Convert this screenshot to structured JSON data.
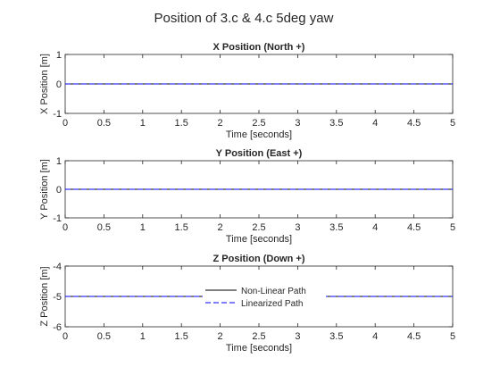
{
  "figure": {
    "title": "Position of 3.c & 4.c 5deg yaw"
  },
  "colors": {
    "nonlinear": "#000000",
    "linearized": "#0000ff",
    "axes": "#262626"
  },
  "chart_data": [
    {
      "type": "line",
      "title": "X Position (North +)",
      "xlabel": "Time [seconds]",
      "ylabel": "X Position [m]",
      "xlim": [
        0,
        5
      ],
      "ylim": [
        -1,
        1
      ],
      "xticks": [
        0,
        0.5,
        1,
        1.5,
        2,
        2.5,
        3,
        3.5,
        4,
        4.5,
        5
      ],
      "yticks": [
        -1,
        0,
        1
      ],
      "grid": false,
      "series": [
        {
          "name": "Non-Linear Path",
          "x": [
            0,
            5
          ],
          "y": [
            0,
            0
          ]
        },
        {
          "name": "Linearized Path",
          "x": [
            0,
            5
          ],
          "y": [
            0,
            0
          ]
        }
      ]
    },
    {
      "type": "line",
      "title": "Y Position (East +)",
      "xlabel": "Time [seconds]",
      "ylabel": "Y Position [m]",
      "xlim": [
        0,
        5
      ],
      "ylim": [
        -1,
        1
      ],
      "xticks": [
        0,
        0.5,
        1,
        1.5,
        2,
        2.5,
        3,
        3.5,
        4,
        4.5,
        5
      ],
      "yticks": [
        -1,
        0,
        1
      ],
      "grid": false,
      "series": [
        {
          "name": "Non-Linear Path",
          "x": [
            0,
            5
          ],
          "y": [
            0,
            0
          ]
        },
        {
          "name": "Linearized Path",
          "x": [
            0,
            5
          ],
          "y": [
            0,
            0
          ]
        }
      ]
    },
    {
      "type": "line",
      "title": "Z Position (Down +)",
      "xlabel": "Time [seconds]",
      "ylabel": "Z Position [m]",
      "xlim": [
        0,
        5
      ],
      "ylim": [
        -6,
        -4
      ],
      "xticks": [
        0,
        0.5,
        1,
        1.5,
        2,
        2.5,
        3,
        3.5,
        4,
        4.5,
        5
      ],
      "yticks": [
        -6,
        -5,
        -4
      ],
      "grid": false,
      "legend": {
        "position": "center",
        "entries": [
          "Non-Linear Path",
          "Linearized Path"
        ]
      },
      "series": [
        {
          "name": "Non-Linear Path",
          "x": [
            0,
            5
          ],
          "y": [
            -5,
            -5
          ]
        },
        {
          "name": "Linearized Path",
          "x": [
            0,
            5
          ],
          "y": [
            -5,
            -5
          ]
        }
      ]
    }
  ]
}
